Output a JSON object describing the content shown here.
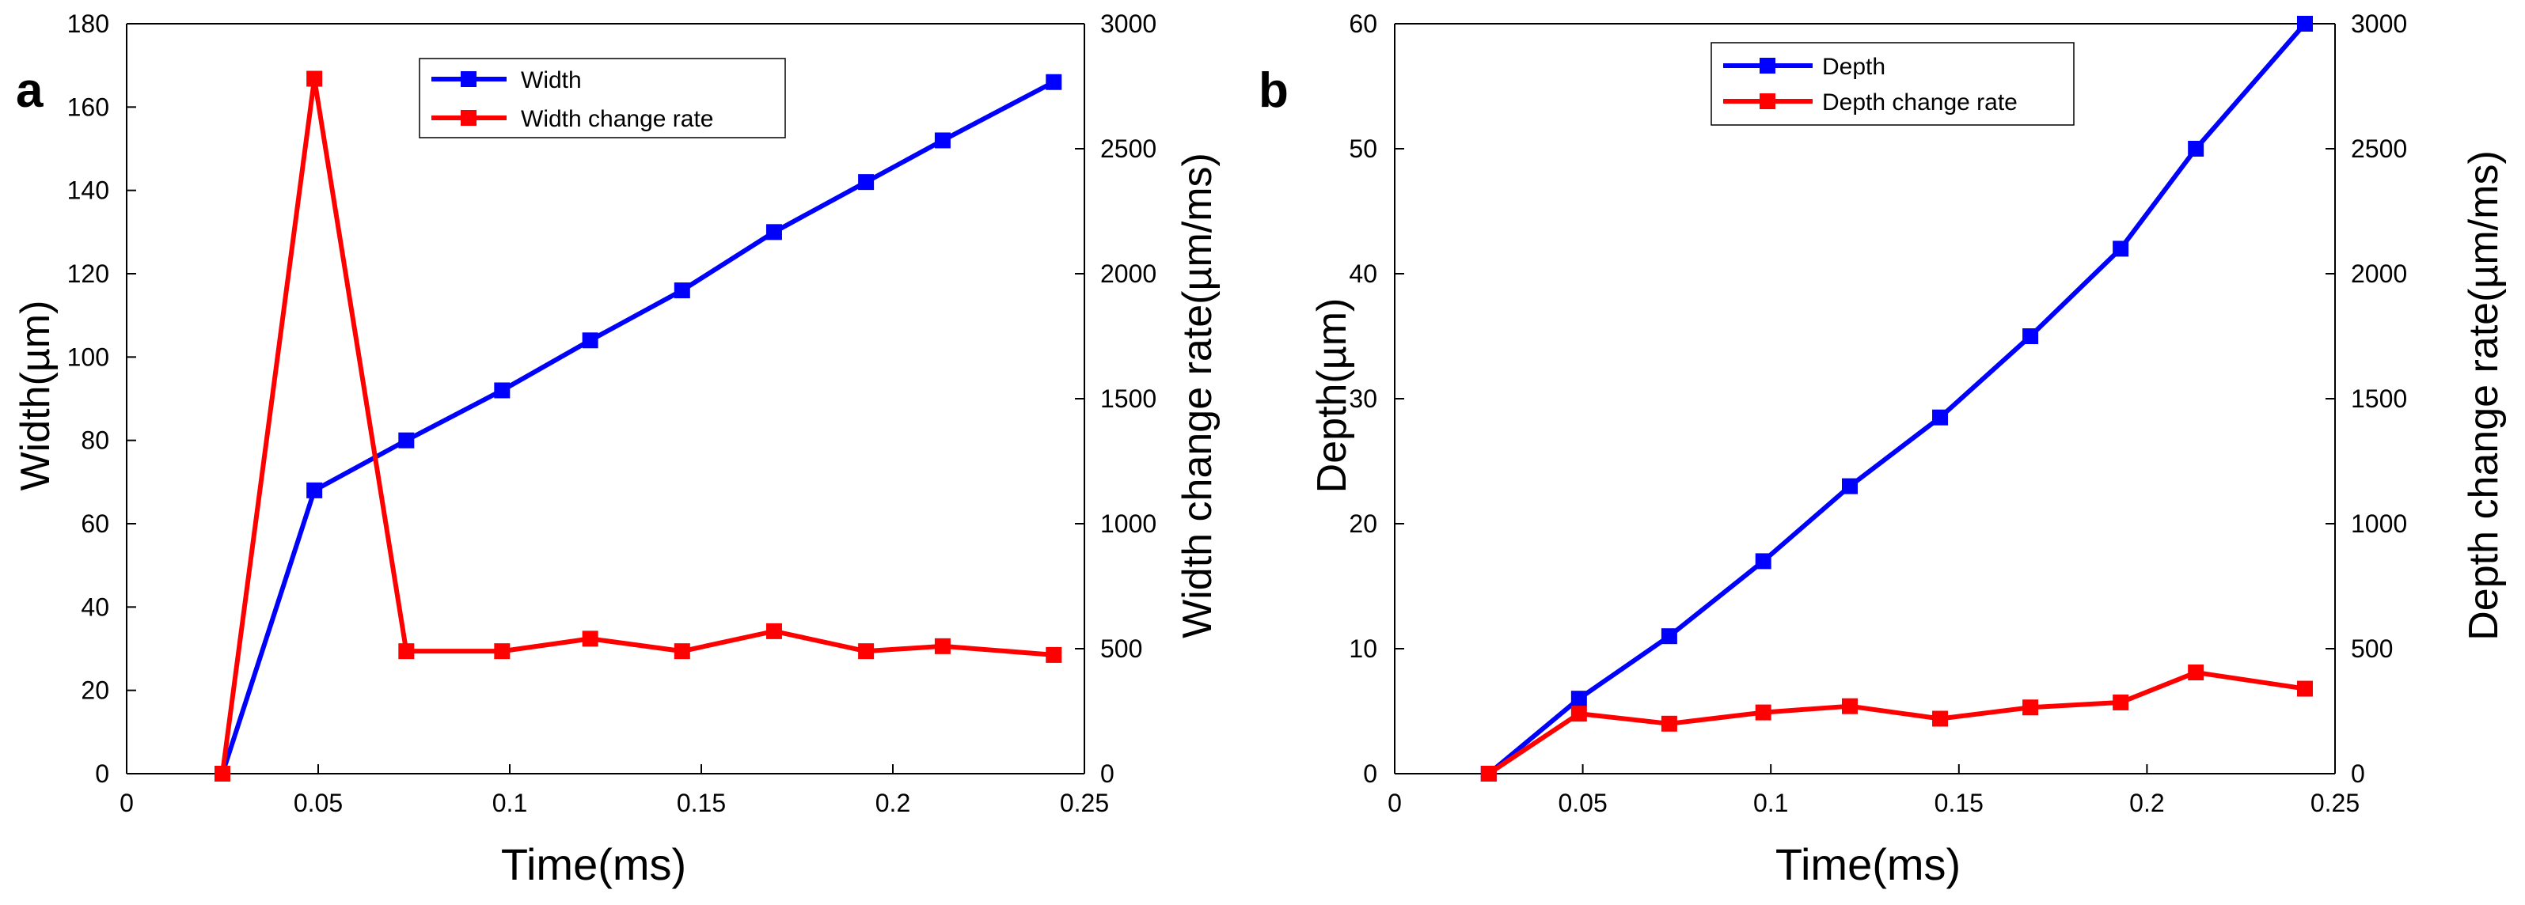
{
  "chart_data": [
    {
      "type": "line",
      "panel_label": "a",
      "xlabel": "Time(ms)",
      "ylabel_left": "Width(µm)",
      "ylabel_right": "Width change rate(µm/ms)",
      "xlim": [
        0,
        0.25
      ],
      "ylim_left": [
        0,
        180
      ],
      "ylim_right": [
        0,
        3000
      ],
      "x_ticks": [
        "0",
        "0.05",
        "0.1",
        "0.15",
        "0.2",
        "0.25"
      ],
      "y_left_ticks": [
        "0",
        "20",
        "40",
        "60",
        "80",
        "100",
        "120",
        "140",
        "160",
        "180"
      ],
      "y_right_ticks": [
        "0",
        "500",
        "1000",
        "1500",
        "2000",
        "2500",
        "3000"
      ],
      "legend_position": "top-center",
      "series": [
        {
          "name": "Width",
          "axis": "left",
          "color": "#0000ff",
          "x": [
            0.025,
            0.049,
            0.073,
            0.098,
            0.121,
            0.145,
            0.169,
            0.193,
            0.213,
            0.242
          ],
          "values": [
            0,
            68,
            80,
            92,
            104,
            116,
            130,
            142,
            152,
            166
          ]
        },
        {
          "name": "Width change rate",
          "axis": "right",
          "color": "#ff0000",
          "x": [
            0.025,
            0.049,
            0.073,
            0.098,
            0.121,
            0.145,
            0.169,
            0.193,
            0.213,
            0.242
          ],
          "values": [
            0,
            2780,
            490,
            490,
            540,
            490,
            570,
            490,
            510,
            475
          ]
        }
      ]
    },
    {
      "type": "line",
      "panel_label": "b",
      "xlabel": "Time(ms)",
      "ylabel_left": "Depth(µm)",
      "ylabel_right": "Depth change rate(µm/ms)",
      "xlim": [
        0,
        0.25
      ],
      "ylim_left": [
        0,
        60
      ],
      "ylim_right": [
        0,
        3000
      ],
      "x_ticks": [
        "0",
        "0.05",
        "0.1",
        "0.15",
        "0.2",
        "0.25"
      ],
      "y_left_ticks": [
        "0",
        "10",
        "20",
        "30",
        "40",
        "50",
        "60"
      ],
      "y_right_ticks": [
        "0",
        "500",
        "1000",
        "1500",
        "2000",
        "2500",
        "3000"
      ],
      "legend_position": "top-center",
      "series": [
        {
          "name": "Depth",
          "axis": "left",
          "color": "#0000ff",
          "x": [
            0.025,
            0.049,
            0.073,
            0.098,
            0.121,
            0.145,
            0.169,
            0.193,
            0.213,
            0.242
          ],
          "values": [
            0,
            6,
            11,
            17,
            23,
            28.5,
            35,
            42,
            50,
            60
          ]
        },
        {
          "name": "Depth change rate",
          "axis": "right",
          "color": "#ff0000",
          "x": [
            0.025,
            0.049,
            0.073,
            0.098,
            0.121,
            0.145,
            0.169,
            0.193,
            0.213,
            0.242
          ],
          "values": [
            0,
            240,
            200,
            245,
            270,
            220,
            265,
            285,
            405,
            340
          ]
        }
      ]
    }
  ]
}
